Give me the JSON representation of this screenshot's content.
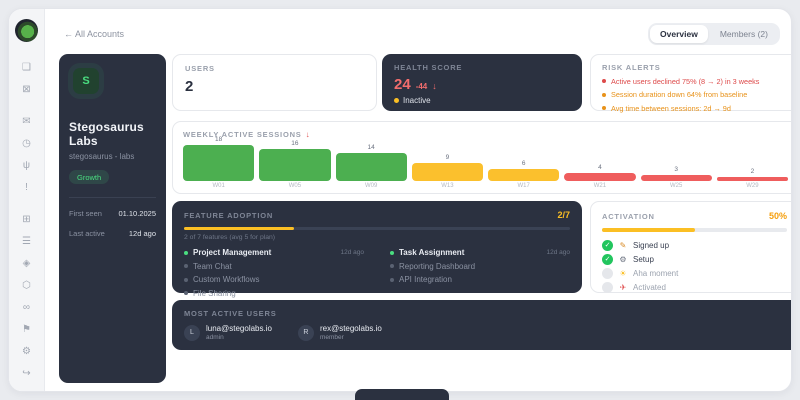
{
  "header": {
    "back_label": "← All Accounts",
    "tabs": [
      {
        "label": "Overview",
        "active": true
      },
      {
        "label": "Members (2)",
        "active": false
      }
    ]
  },
  "sidebar": {
    "icons": [
      {
        "name": "panel-icon",
        "glyph": "❑",
        "group": 0
      },
      {
        "name": "grid-icon",
        "glyph": "⊠",
        "group": 0
      },
      {
        "name": "chat-icon",
        "glyph": "✉",
        "group": 1
      },
      {
        "name": "clock-icon",
        "glyph": "◷",
        "group": 1
      },
      {
        "name": "signal-icon",
        "glyph": "ψ",
        "group": 1
      },
      {
        "name": "alert-icon",
        "glyph": "!",
        "group": 1
      },
      {
        "name": "apps-icon",
        "glyph": "⊞",
        "group": 2
      },
      {
        "name": "list-icon",
        "glyph": "☰",
        "group": 2
      },
      {
        "name": "tags-icon",
        "glyph": "◈",
        "group": 2
      },
      {
        "name": "package-icon",
        "glyph": "⬡",
        "group": 2
      },
      {
        "name": "link-icon",
        "glyph": "∞",
        "group": 2
      },
      {
        "name": "flag-icon",
        "glyph": "⚑",
        "group": 2
      },
      {
        "name": "settings-icon",
        "glyph": "⚙",
        "group": 2
      }
    ],
    "logout_glyph": "↪"
  },
  "account": {
    "avatar_initial": "S",
    "name": "Stegosaurus Labs",
    "slug": "stegosaurus - labs",
    "plan_badge": "Growth",
    "fields": [
      {
        "label": "First seen",
        "value": "01.10.2025"
      },
      {
        "label": "Last active",
        "value": "12d ago"
      }
    ]
  },
  "users_card": {
    "label": "Users",
    "value": "2"
  },
  "health_card": {
    "label": "Health Score",
    "score": "24",
    "delta": "-44",
    "trend_arrow": "↓",
    "status": "Inactive",
    "status_color": "#fbbf24"
  },
  "risk_alerts": {
    "label": "Risk Alerts",
    "items": [
      {
        "text": "Active users declined 75% (8 → 2) in 3 weeks",
        "color": "#dd4a4a"
      },
      {
        "text": "Session duration down 64% from baseline",
        "color": "#e8921a"
      },
      {
        "text": "Avg time between sessions: 2d → 9d",
        "color": "#e8921a"
      }
    ]
  },
  "chart_data": {
    "type": "bar",
    "title": "Weekly Active Sessions",
    "trend_arrow": "↓",
    "categories": [
      "W01",
      "W05",
      "W09",
      "W13",
      "W17",
      "W21",
      "W25",
      "W29"
    ],
    "values": [
      18,
      16,
      14,
      9,
      6,
      4,
      3,
      2
    ],
    "bar_colors": [
      "#4caf50",
      "#4caf50",
      "#4caf50",
      "#fbc02d",
      "#fbc02d",
      "#ef5d5d",
      "#ef5d5d",
      "#ef5d5d"
    ],
    "ylim": [
      0,
      18
    ],
    "grid": false,
    "value_labels": true
  },
  "feature_adoption": {
    "label": "Feature Adoption",
    "count": "2/7",
    "progress_pct": 28.6,
    "subtext": "2 of 7 features (avg 5 for plan)",
    "columns": [
      [
        {
          "name": "Project Management",
          "adopted": true,
          "last_used": "12d ago"
        },
        {
          "name": "Team Chat",
          "adopted": false,
          "last_used": ""
        },
        {
          "name": "Custom Workflows",
          "adopted": false,
          "last_used": ""
        },
        {
          "name": "File Sharing",
          "adopted": false,
          "last_used": ""
        }
      ],
      [
        {
          "name": "Task Assignment",
          "adopted": true,
          "last_used": "12d ago"
        },
        {
          "name": "Reporting Dashboard",
          "adopted": false,
          "last_used": ""
        },
        {
          "name": "API Integration",
          "adopted": false,
          "last_used": ""
        }
      ]
    ]
  },
  "activation": {
    "label": "Activation",
    "pct": "50%",
    "progress_pct": 50,
    "steps": [
      {
        "icon": "pencil-icon",
        "glyph": "✎",
        "glyph_color": "#d98c28",
        "name": "Signed up",
        "done": true
      },
      {
        "icon": "gear-icon",
        "glyph": "⚙",
        "glyph_color": "#6b7280",
        "name": "Setup",
        "done": true
      },
      {
        "icon": "bulb-icon",
        "glyph": "☀",
        "glyph_color": "#fbbf24",
        "name": "Aha moment",
        "done": false
      },
      {
        "icon": "rocket-icon",
        "glyph": "✈",
        "glyph_color": "#e05252",
        "name": "Activated",
        "done": false
      }
    ]
  },
  "most_active_users": {
    "label": "Most Active Users",
    "users": [
      {
        "initial": "L",
        "email": "luna@stegolabs.io",
        "role": "admin"
      },
      {
        "initial": "R",
        "email": "rex@stegolabs.io",
        "role": "member"
      }
    ]
  },
  "colors": {
    "dark_card": "#2b3140",
    "accent_green": "#4ade80",
    "accent_amber": "#fbbf24",
    "accent_red": "#f26d6d",
    "page_bg": "#e9ebef"
  }
}
